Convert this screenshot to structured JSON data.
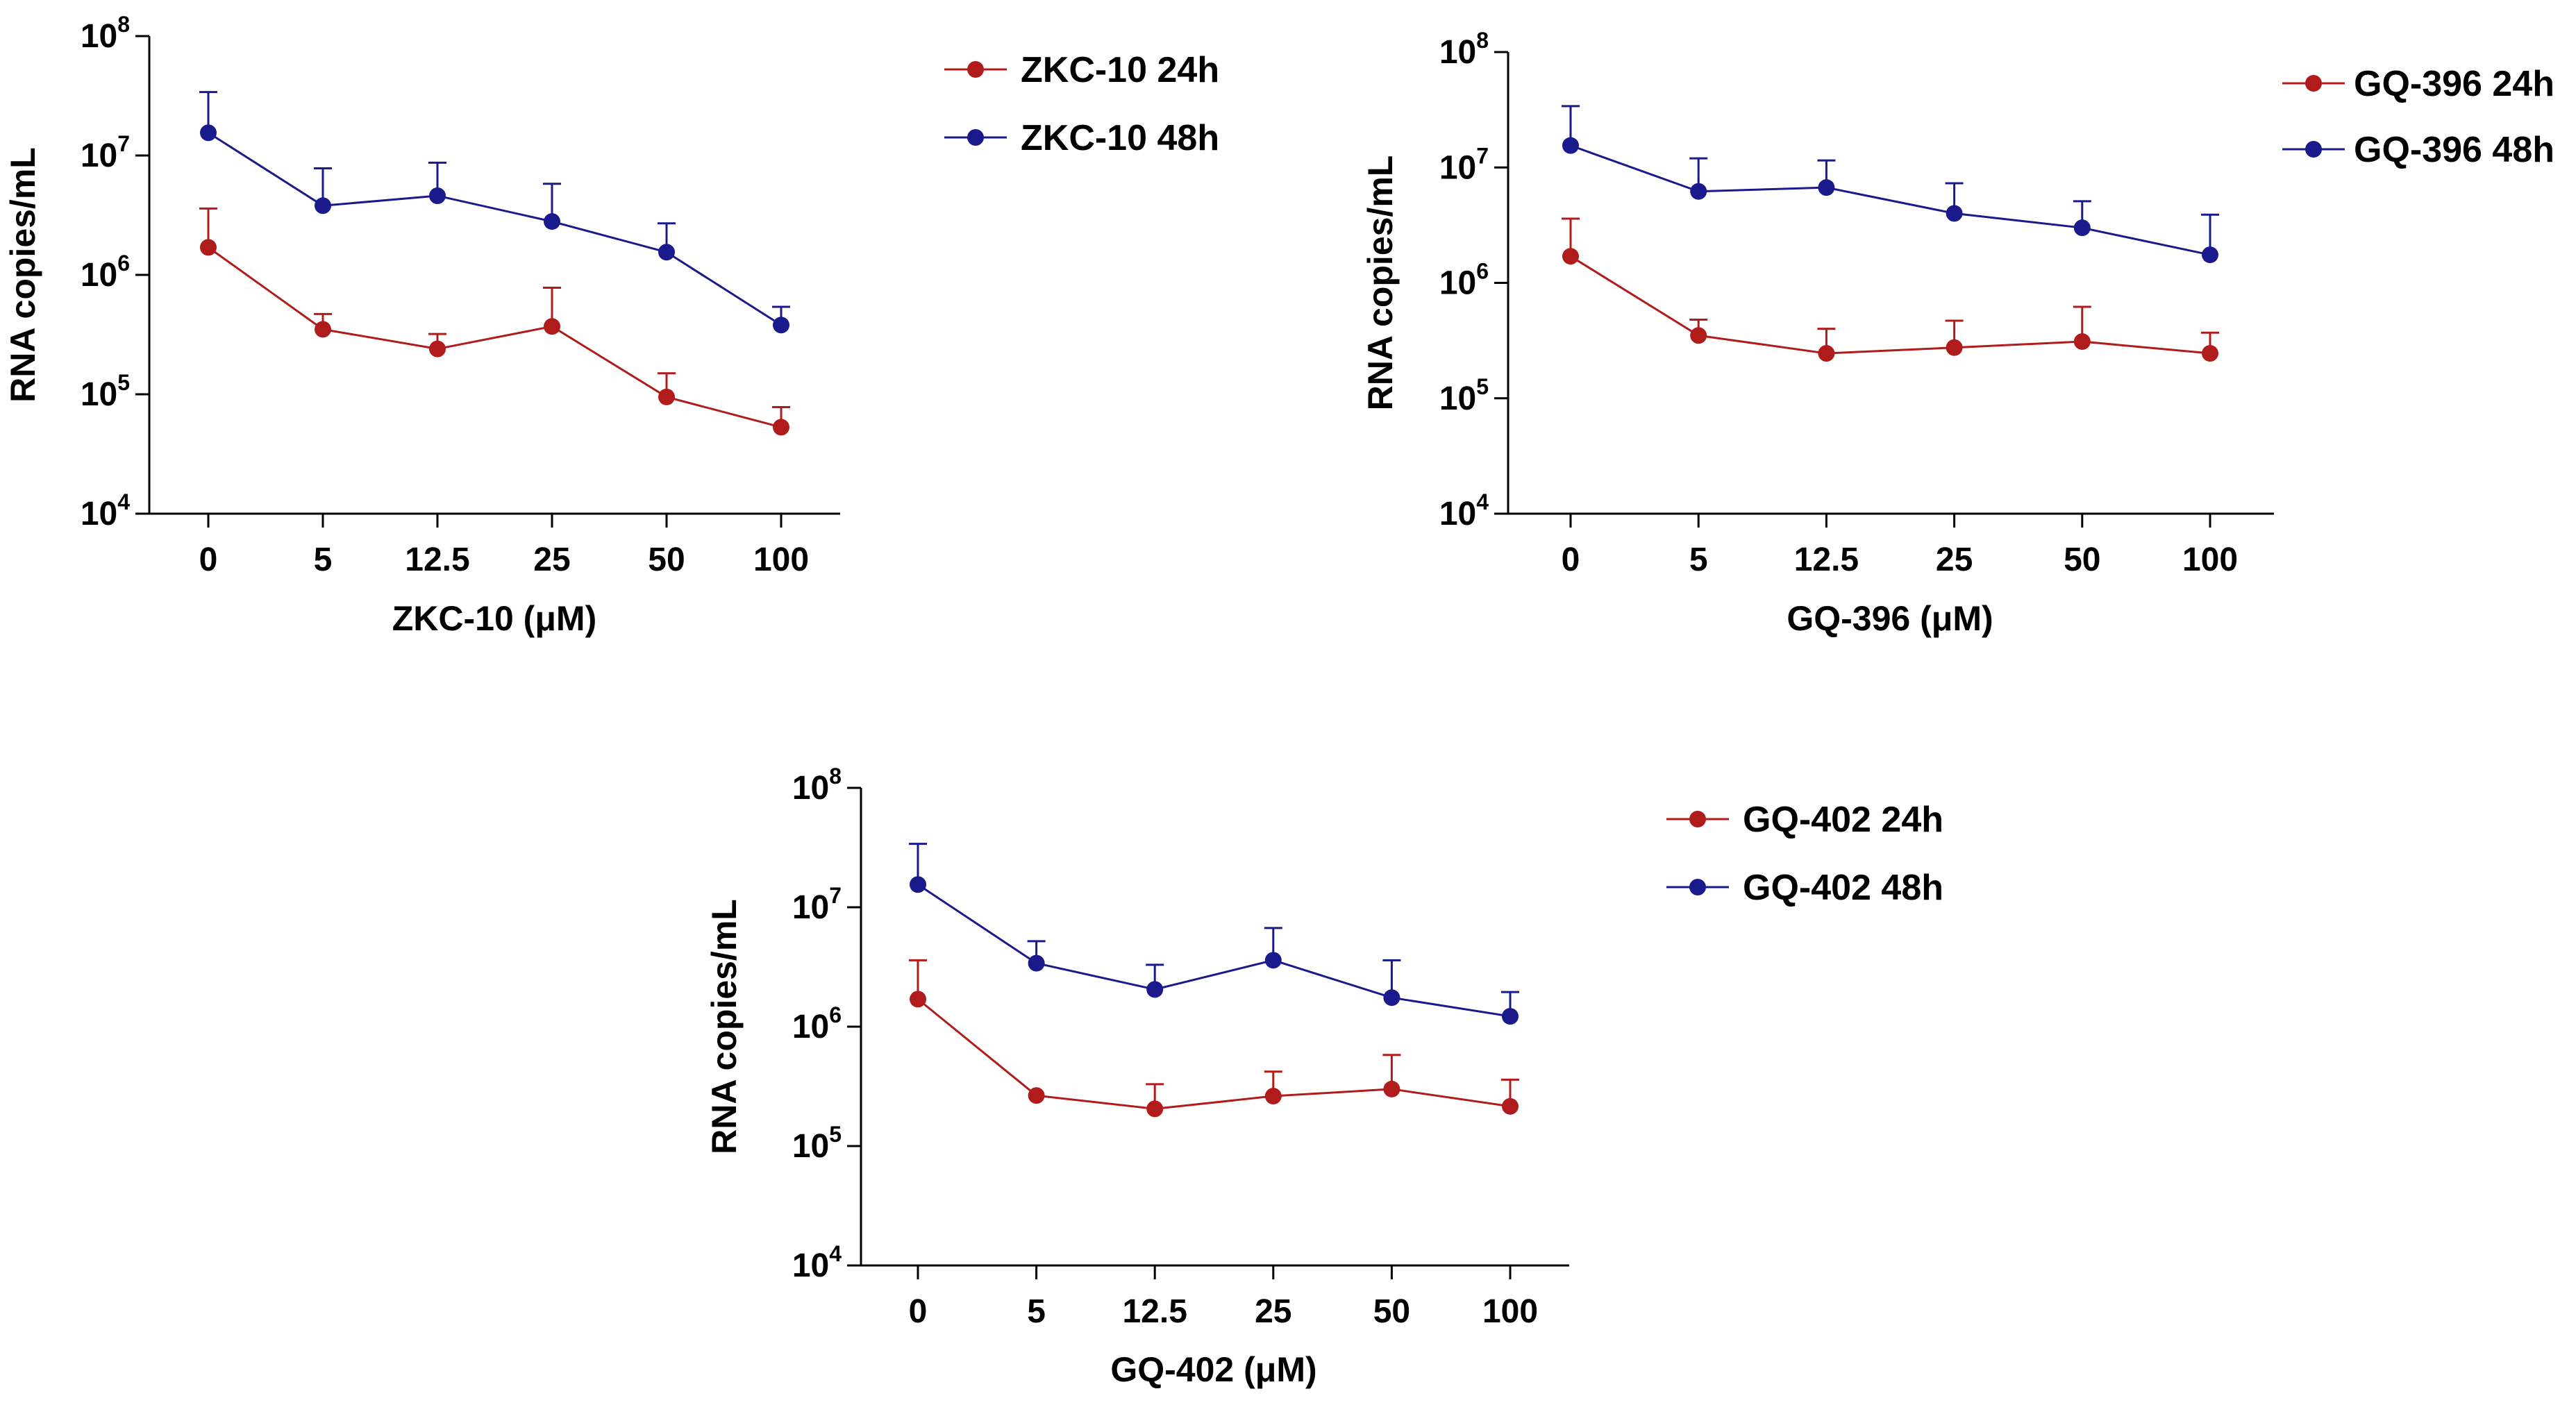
{
  "chart_data": [
    {
      "type": "line",
      "yscale": "log",
      "ylim": [
        10000,
        100000000
      ],
      "yticks": [
        {
          "base": "10",
          "exp": "4"
        },
        {
          "base": "10",
          "exp": "5"
        },
        {
          "base": "10",
          "exp": "6"
        },
        {
          "base": "10",
          "exp": "7"
        },
        {
          "base": "10",
          "exp": "8"
        }
      ],
      "categories": [
        "0",
        "5",
        "12.5",
        "25",
        "50",
        "100"
      ],
      "xlabel": "ZKC-10 (μM)",
      "ylabel": "RNA copies/mL",
      "legend_position": "top-right",
      "series": [
        {
          "name": "ZKC-10 24h",
          "color": "#b01c1c",
          "values": [
            1700000,
            350000,
            240000,
            370000,
            95000,
            53000
          ],
          "err_upper": [
            3600000,
            470000,
            320000,
            780000,
            150000,
            78000
          ]
        },
        {
          "name": "ZKC-10 48h",
          "color": "#1a1a8c",
          "values": [
            15500000,
            3800000,
            4600000,
            2800000,
            1550000,
            380000
          ],
          "err_upper": [
            34000000,
            7800000,
            8700000,
            5800000,
            2700000,
            540000
          ]
        }
      ]
    },
    {
      "type": "line",
      "yscale": "log",
      "ylim": [
        10000,
        100000000
      ],
      "yticks": [
        {
          "base": "10",
          "exp": "4"
        },
        {
          "base": "10",
          "exp": "5"
        },
        {
          "base": "10",
          "exp": "6"
        },
        {
          "base": "10",
          "exp": "7"
        },
        {
          "base": "10",
          "exp": "8"
        }
      ],
      "categories": [
        "0",
        "5",
        "12.5",
        "25",
        "50",
        "100"
      ],
      "xlabel": "GQ-396 (μM)",
      "ylabel": "RNA copies/mL",
      "legend_position": "top-right",
      "series": [
        {
          "name": "GQ-396 24h",
          "color": "#b01c1c",
          "values": [
            1700000,
            350000,
            245000,
            275000,
            310000,
            245000
          ],
          "err_upper": [
            3600000,
            480000,
            400000,
            470000,
            620000,
            370000
          ]
        },
        {
          "name": "GQ-396 48h",
          "color": "#1a1a8c",
          "values": [
            15500000,
            6200000,
            6700000,
            4000000,
            3000000,
            1750000
          ],
          "err_upper": [
            34000000,
            12000000,
            11500000,
            7300000,
            5100000,
            3900000
          ]
        }
      ]
    },
    {
      "type": "line",
      "yscale": "log",
      "ylim": [
        10000,
        100000000
      ],
      "yticks": [
        {
          "base": "10",
          "exp": "4"
        },
        {
          "base": "10",
          "exp": "5"
        },
        {
          "base": "10",
          "exp": "6"
        },
        {
          "base": "10",
          "exp": "7"
        },
        {
          "base": "10",
          "exp": "8"
        }
      ],
      "categories": [
        "0",
        "5",
        "12.5",
        "25",
        "50",
        "100"
      ],
      "xlabel": "GQ-402 (μM)",
      "ylabel": "RNA copies/mL",
      "legend_position": "top-right",
      "series": [
        {
          "name": "GQ-402 24h",
          "color": "#b01c1c",
          "values": [
            1700000,
            265000,
            205000,
            262000,
            300000,
            215000
          ],
          "err_upper": [
            3600000,
            265000,
            330000,
            420000,
            580000,
            360000
          ]
        },
        {
          "name": "GQ-402 48h",
          "color": "#1a1a8c",
          "values": [
            15500000,
            3400000,
            2050000,
            3600000,
            1750000,
            1220000
          ],
          "err_upper": [
            34000000,
            5200000,
            3300000,
            6700000,
            3600000,
            1950000
          ]
        }
      ]
    }
  ]
}
